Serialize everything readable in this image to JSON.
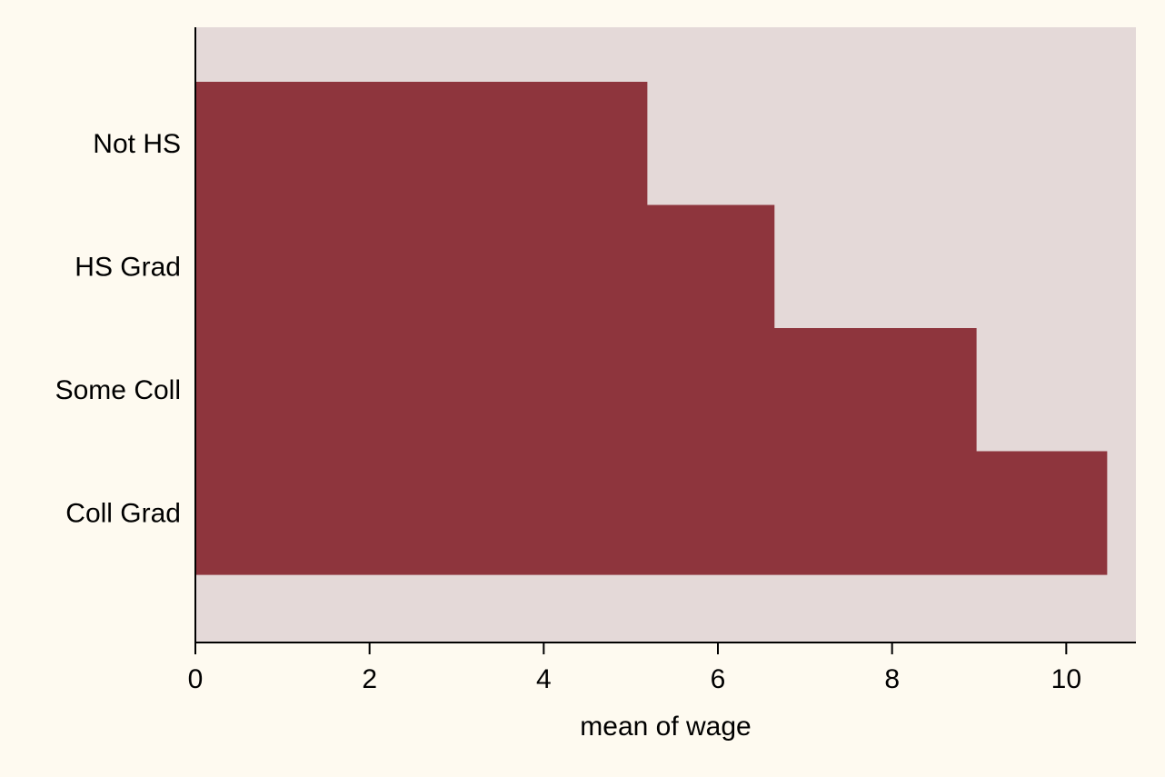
{
  "chart_data": {
    "type": "bar",
    "orientation": "horizontal",
    "categories": [
      "Not HS",
      "HS Grad",
      "Some Coll",
      "Coll Grad"
    ],
    "values": [
      5.19,
      6.65,
      8.97,
      10.47
    ],
    "xlabel": "mean of wage",
    "ylabel": "",
    "xlim": [
      0,
      10.8
    ],
    "xticks": [
      0,
      2,
      4,
      6,
      8,
      10
    ],
    "grid": false,
    "legend": "none",
    "colors": {
      "page_background": "#fefaf0",
      "plot_background": "#e4d9d8",
      "bar": "#8e353d",
      "axis": "#000000"
    }
  }
}
